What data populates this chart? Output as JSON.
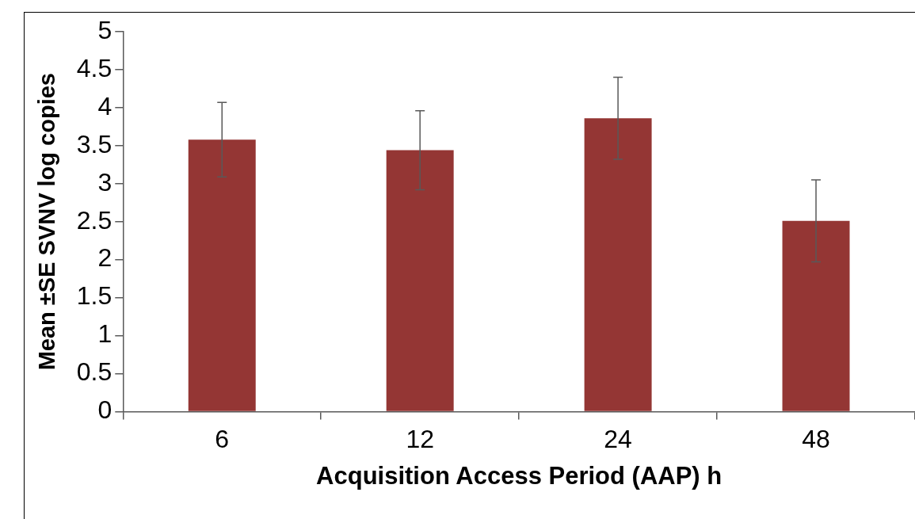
{
  "chart_data": {
    "type": "bar",
    "xlabel": "Acquisition Access Period (AAP) h",
    "ylabel": "Mean ±SE SVNV log copies",
    "categories": [
      "6",
      "12",
      "24",
      "48"
    ],
    "values": [
      3.58,
      3.44,
      3.86,
      2.51
    ],
    "errors": [
      0.49,
      0.52,
      0.54,
      0.54
    ],
    "color": "#943634",
    "ylim": [
      0,
      5
    ],
    "yticks": [
      0,
      0.5,
      1,
      1.5,
      2,
      2.5,
      3,
      3.5,
      4,
      4.5,
      5
    ],
    "grid": false,
    "legend": false
  }
}
